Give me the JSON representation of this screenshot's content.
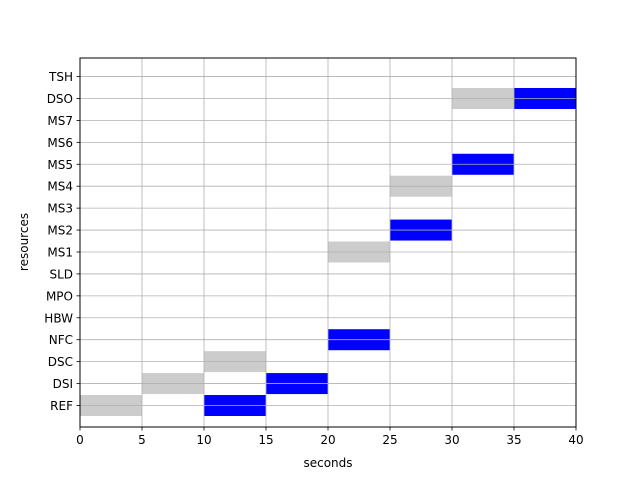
{
  "chart_data": {
    "type": "bar",
    "subtype": "gantt",
    "title": "",
    "xlabel": "seconds",
    "ylabel": "resources",
    "xlim": [
      0,
      40
    ],
    "xticks": [
      0,
      5,
      10,
      15,
      20,
      25,
      30,
      35,
      40
    ],
    "grid": true,
    "legend": "none",
    "resources": [
      "REF",
      "DSI",
      "DSC",
      "NFC",
      "HBW",
      "MPO",
      "SLD",
      "MS1",
      "MS2",
      "MS3",
      "MS4",
      "MS5",
      "MS6",
      "MS7",
      "DSO",
      "TSH"
    ],
    "colors": {
      "blue": "#0000ff",
      "gray": "#cccccc"
    },
    "tasks": [
      {
        "resource": "REF",
        "start": 0,
        "end": 5,
        "color": "gray"
      },
      {
        "resource": "REF",
        "start": 10,
        "end": 15,
        "color": "blue"
      },
      {
        "resource": "DSI",
        "start": 5,
        "end": 10,
        "color": "gray"
      },
      {
        "resource": "DSI",
        "start": 15,
        "end": 20,
        "color": "blue"
      },
      {
        "resource": "DSC",
        "start": 10,
        "end": 15,
        "color": "gray"
      },
      {
        "resource": "NFC",
        "start": 20,
        "end": 25,
        "color": "blue"
      },
      {
        "resource": "MS1",
        "start": 20,
        "end": 25,
        "color": "gray"
      },
      {
        "resource": "MS2",
        "start": 25,
        "end": 30,
        "color": "blue"
      },
      {
        "resource": "MS4",
        "start": 25,
        "end": 30,
        "color": "gray"
      },
      {
        "resource": "MS5",
        "start": 30,
        "end": 35,
        "color": "blue"
      },
      {
        "resource": "DSO",
        "start": 30,
        "end": 35,
        "color": "gray"
      },
      {
        "resource": "DSO",
        "start": 35,
        "end": 40,
        "color": "blue"
      }
    ]
  }
}
